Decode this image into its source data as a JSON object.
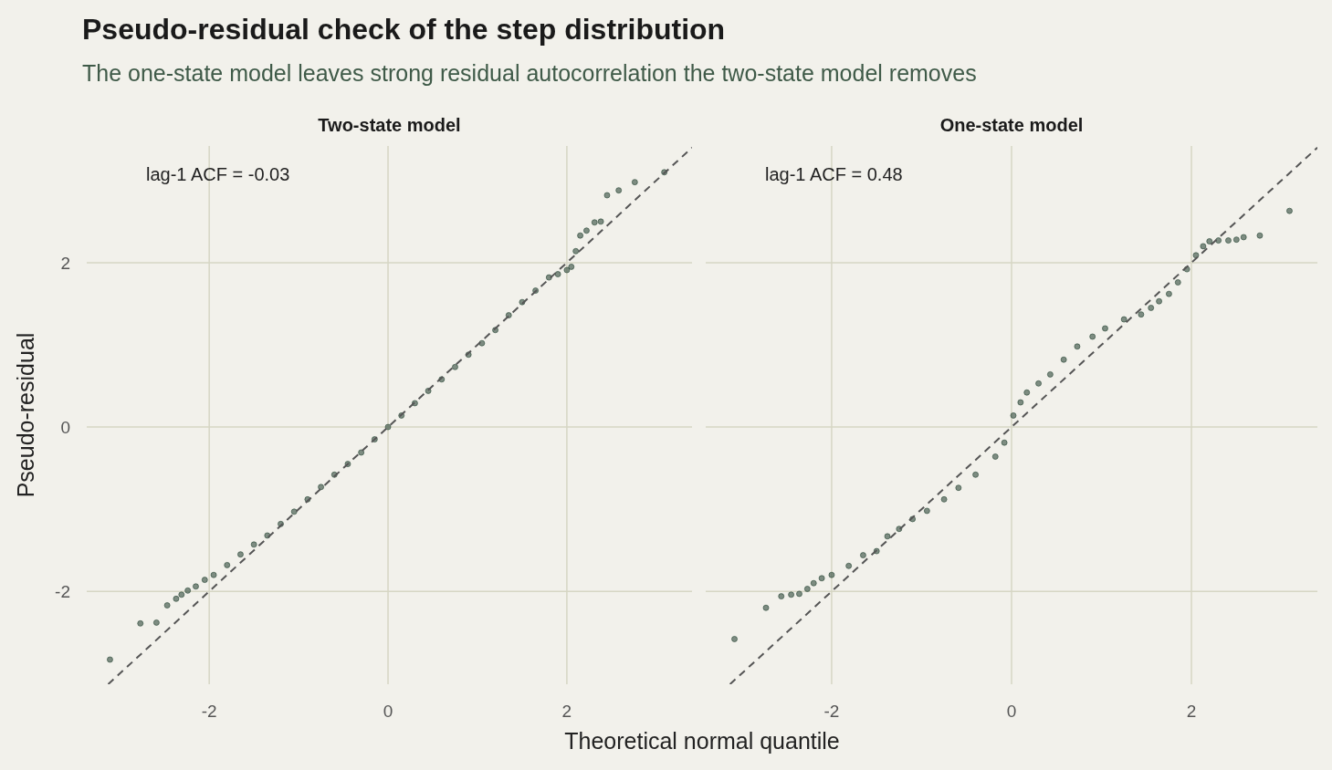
{
  "chart_data": [
    {
      "type": "scatter",
      "title": "Pseudo-residual check of the step distribution",
      "subtitle": "The one-state model leaves strong residual autocorrelation the two-state model removes",
      "xlabel": "Theoretical normal quantile",
      "ylabel": "Pseudo-residual",
      "annotations": [
        "Two-state model",
        "lag-1 ACF = -0.03"
      ],
      "xlim": [
        -3.37,
        3.4
      ],
      "ylim": [
        -3.13,
        3.42
      ],
      "xticks": [
        -2,
        0,
        2
      ],
      "yticks": [
        -2,
        0,
        2
      ],
      "grid": true,
      "series": [
        {
          "marker": "circle",
          "color": "#2e4a3a",
          "x": [
            -3.11,
            -2.77,
            -2.59,
            -2.47,
            -2.37,
            -2.31,
            -2.24,
            -2.15,
            -2.05,
            -1.95,
            -1.8,
            -1.65,
            -1.5,
            -1.35,
            -1.2,
            -1.05,
            -0.9,
            -0.75,
            -0.6,
            -0.45,
            -0.3,
            -0.15,
            0,
            0.15,
            0.3,
            0.45,
            0.6,
            0.75,
            0.9,
            1.05,
            1.2,
            1.35,
            1.5,
            1.65,
            1.8,
            1.9,
            2.0,
            2.05,
            2.1,
            2.15,
            2.22,
            2.31,
            2.38,
            2.45,
            2.58,
            2.76,
            3.09
          ],
          "values": [
            -2.83,
            -2.39,
            -2.38,
            -2.17,
            -2.09,
            -2.04,
            -1.99,
            -1.94,
            -1.86,
            -1.8,
            -1.68,
            -1.55,
            -1.43,
            -1.32,
            -1.18,
            -1.03,
            -0.88,
            -0.73,
            -0.58,
            -0.45,
            -0.31,
            -0.15,
            0,
            0.14,
            0.29,
            0.44,
            0.58,
            0.73,
            0.88,
            1.02,
            1.18,
            1.36,
            1.52,
            1.66,
            1.82,
            1.86,
            1.91,
            1.95,
            2.14,
            2.33,
            2.39,
            2.49,
            2.5,
            2.82,
            2.88,
            2.98,
            3.1
          ]
        },
        {
          "type": "line",
          "line_style": "dashed",
          "marker": "none",
          "color": "#555555",
          "x": [
            -3.13,
            3.4
          ],
          "values": [
            -3.13,
            3.4
          ]
        }
      ]
    },
    {
      "type": "scatter",
      "annotations": [
        "One-state model",
        "lag-1 ACF = 0.48"
      ],
      "xlim": [
        -3.4,
        3.4
      ],
      "ylim": [
        -3.13,
        3.42
      ],
      "xticks": [
        -2,
        0,
        2
      ],
      "yticks": [
        -2,
        0,
        2
      ],
      "tick_labels": "x",
      "grid": true,
      "series": [
        {
          "marker": "circle",
          "color": "#2e4a3a",
          "x": [
            -3.08,
            -2.73,
            -2.56,
            -2.45,
            -2.36,
            -2.27,
            -2.2,
            -2.11,
            -2.0,
            -1.81,
            -1.65,
            -1.5,
            -1.38,
            -1.25,
            -1.1,
            -0.94,
            -0.75,
            -0.59,
            -0.4,
            -0.18,
            -0.08,
            0.02,
            0.1,
            0.17,
            0.3,
            0.43,
            0.58,
            0.73,
            0.9,
            1.04,
            1.25,
            1.44,
            1.55,
            1.64,
            1.75,
            1.85,
            1.95,
            2.05,
            2.13,
            2.2,
            2.3,
            2.41,
            2.5,
            2.58,
            2.76,
            3.09
          ],
          "values": [
            -2.58,
            -2.2,
            -2.06,
            -2.04,
            -2.03,
            -1.97,
            -1.9,
            -1.84,
            -1.8,
            -1.69,
            -1.56,
            -1.51,
            -1.33,
            -1.24,
            -1.12,
            -1.02,
            -0.88,
            -0.74,
            -0.58,
            -0.36,
            -0.19,
            0.14,
            0.3,
            0.42,
            0.53,
            0.64,
            0.82,
            0.98,
            1.1,
            1.2,
            1.31,
            1.37,
            1.45,
            1.53,
            1.62,
            1.76,
            1.92,
            2.09,
            2.2,
            2.26,
            2.27,
            2.27,
            2.28,
            2.31,
            2.33,
            2.63
          ]
        },
        {
          "type": "line",
          "line_style": "dashed",
          "marker": "none",
          "color": "#555555",
          "x": [
            -3.13,
            3.4
          ],
          "values": [
            -3.13,
            3.4
          ]
        }
      ]
    }
  ]
}
